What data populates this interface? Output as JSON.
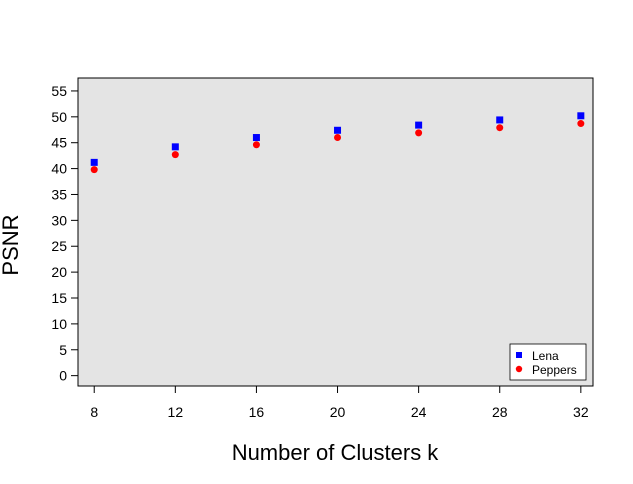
{
  "chart_data": {
    "type": "scatter",
    "title": "",
    "xlabel": "Number of Clusters k",
    "ylabel": "PSNR",
    "x": [
      8,
      12,
      16,
      20,
      24,
      28,
      32
    ],
    "xticks": [
      "8",
      "12",
      "16",
      "20",
      "24",
      "28",
      "32"
    ],
    "yticks": [
      "0",
      "5",
      "10",
      "15",
      "20",
      "25",
      "30",
      "35",
      "40",
      "45",
      "50",
      "55"
    ],
    "xlim": [
      7.2,
      32.6
    ],
    "ylim": [
      -2,
      57.5
    ],
    "background": "#e4e4e4",
    "grid": false,
    "legend_position": "bottom-right",
    "series": [
      {
        "name": "Lena",
        "marker": "square",
        "color": "#0000ff",
        "values": [
          41.2,
          44.2,
          46.0,
          47.4,
          48.4,
          49.4,
          50.2
        ]
      },
      {
        "name": "Peppers",
        "marker": "circle",
        "color": "#ff0000",
        "values": [
          39.8,
          42.7,
          44.6,
          46.0,
          46.9,
          47.9,
          48.7
        ]
      }
    ]
  }
}
